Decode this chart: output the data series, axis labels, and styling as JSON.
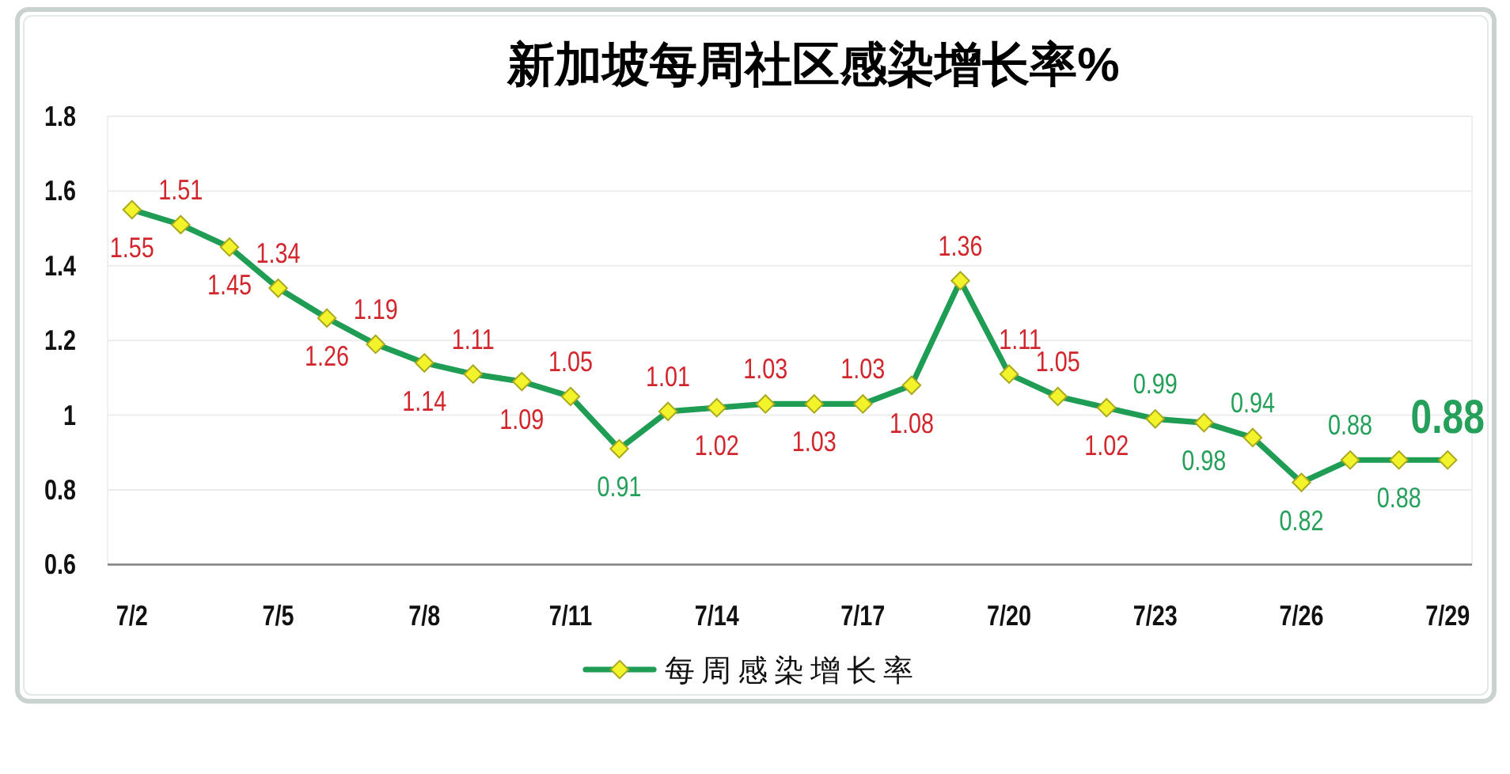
{
  "chart_data": {
    "type": "line",
    "title": "新加坡每周社区感染增长率%",
    "categories": [
      "7/2",
      null,
      null,
      "7/5",
      null,
      null,
      "7/8",
      null,
      null,
      "7/11",
      null,
      null,
      "7/14",
      null,
      null,
      "7/17",
      null,
      null,
      "7/20",
      null,
      null,
      "7/23",
      null,
      null,
      "7/26",
      null,
      null,
      "7/29"
    ],
    "series": [
      {
        "name": "每周感染增长率",
        "color": "#1f9d55",
        "values": [
          1.55,
          1.51,
          1.45,
          1.34,
          1.26,
          1.19,
          1.14,
          1.11,
          1.09,
          1.05,
          0.91,
          1.01,
          1.02,
          1.03,
          1.03,
          1.03,
          1.08,
          1.36,
          1.11,
          1.05,
          1.02,
          0.99,
          0.98,
          0.94,
          0.82,
          0.88,
          0.88,
          0.88
        ]
      }
    ],
    "ylim": [
      0.6,
      1.8
    ],
    "yticks": [
      0.6,
      0.8,
      1,
      1.2,
      1.4,
      1.6,
      1.8
    ],
    "grid": "y",
    "legend": "bottom",
    "marker": "diamond",
    "line_style": "solid",
    "data_labels": true
  }
}
